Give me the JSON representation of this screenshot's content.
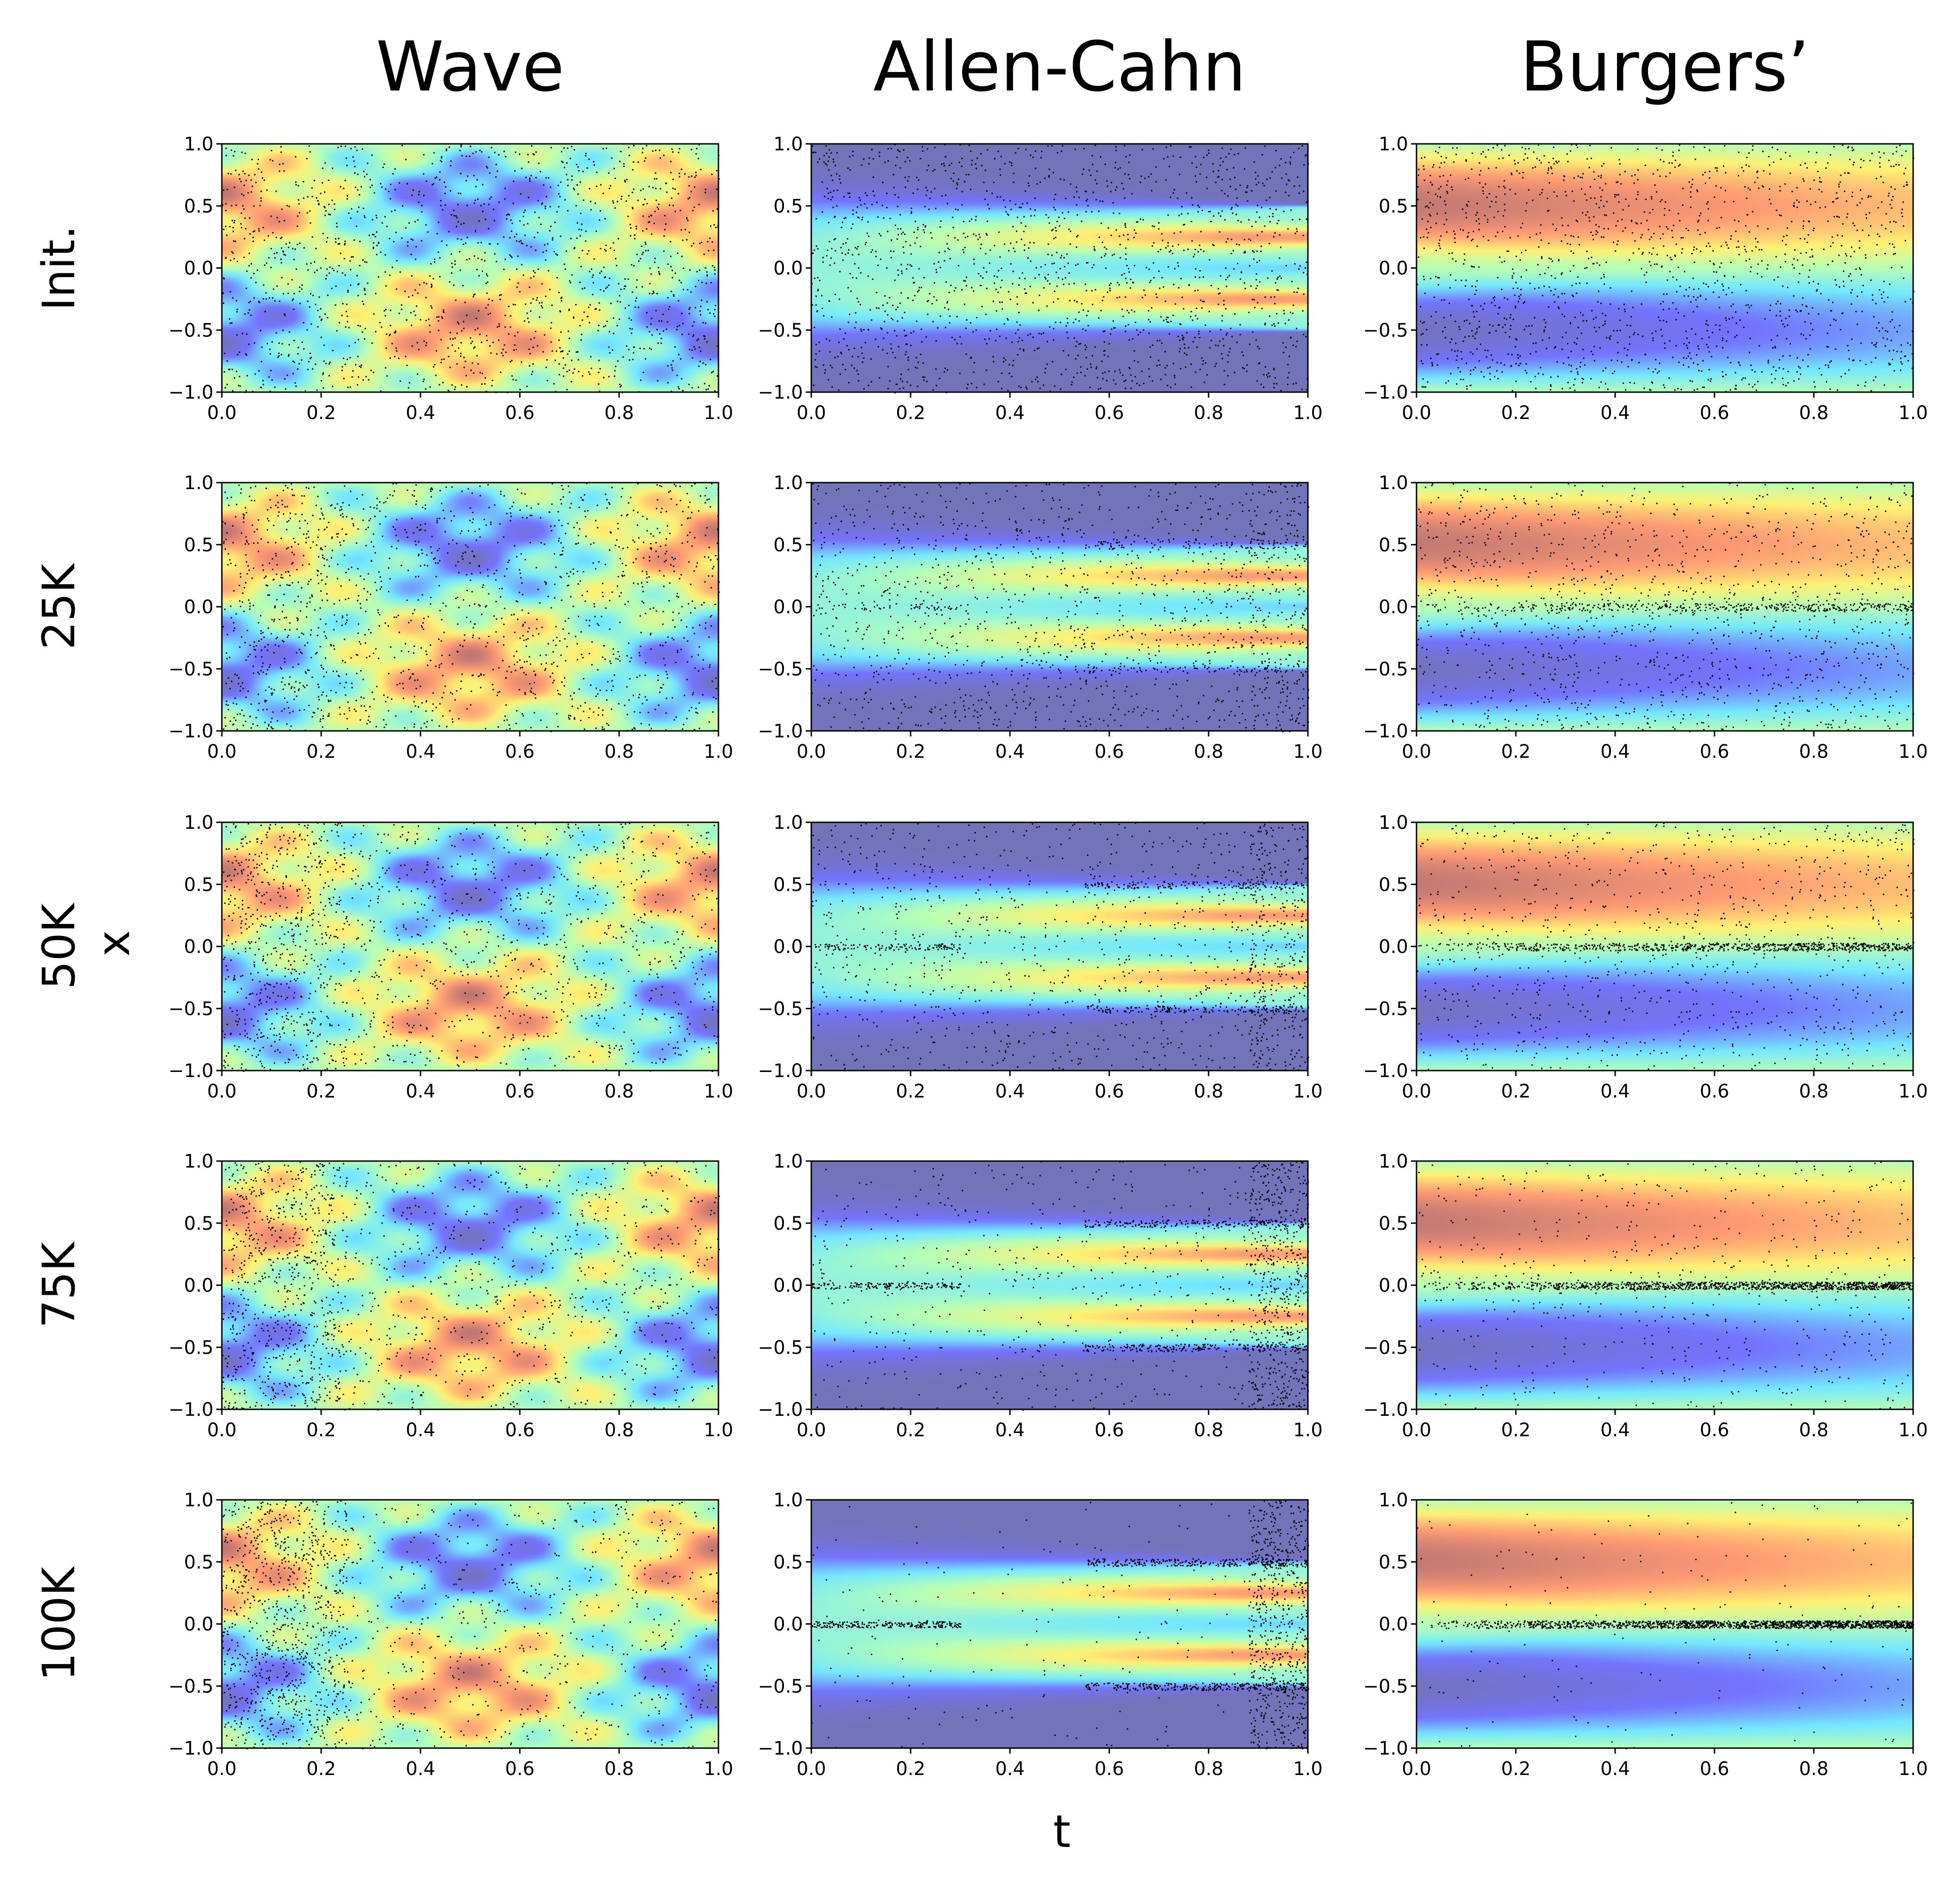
{
  "chart_data": {
    "type": "heatmap",
    "layout": "grid",
    "columns": [
      {
        "key": "wave",
        "title": "Wave"
      },
      {
        "key": "allen_cahn",
        "title": "Allen-Cahn"
      },
      {
        "key": "burgers",
        "title": "Burgers’"
      }
    ],
    "rows": [
      {
        "key": "init",
        "label": "Init."
      },
      {
        "key": "25k",
        "label": "25K"
      },
      {
        "key": "50k",
        "label": "50K"
      },
      {
        "key": "75k",
        "label": "75K"
      },
      {
        "key": "100k",
        "label": "100K"
      }
    ],
    "xlabel": "t",
    "ylabel": "x",
    "xlim": [
      0.0,
      1.0
    ],
    "ylim": [
      -1.0,
      1.0
    ],
    "xticks": [
      "0.0",
      "0.2",
      "0.4",
      "0.6",
      "0.8",
      "1.0"
    ],
    "yticks": [
      "1.0",
      "0.5",
      "0.0",
      "−0.5",
      "−1.0"
    ],
    "xtick_values": [
      0.0,
      0.2,
      0.4,
      0.6,
      0.8,
      1.0
    ],
    "ytick_values": [
      1.0,
      0.5,
      0.0,
      -0.5,
      -1.0
    ],
    "colormap": [
      "#00007f",
      "#0000ff",
      "#00d5ff",
      "#7cff79",
      "#ffe600",
      "#ff4a00",
      "#7f0000"
    ],
    "background_alpha": 0.55,
    "point_color": "#000000",
    "points_per_panel": 1600
  }
}
